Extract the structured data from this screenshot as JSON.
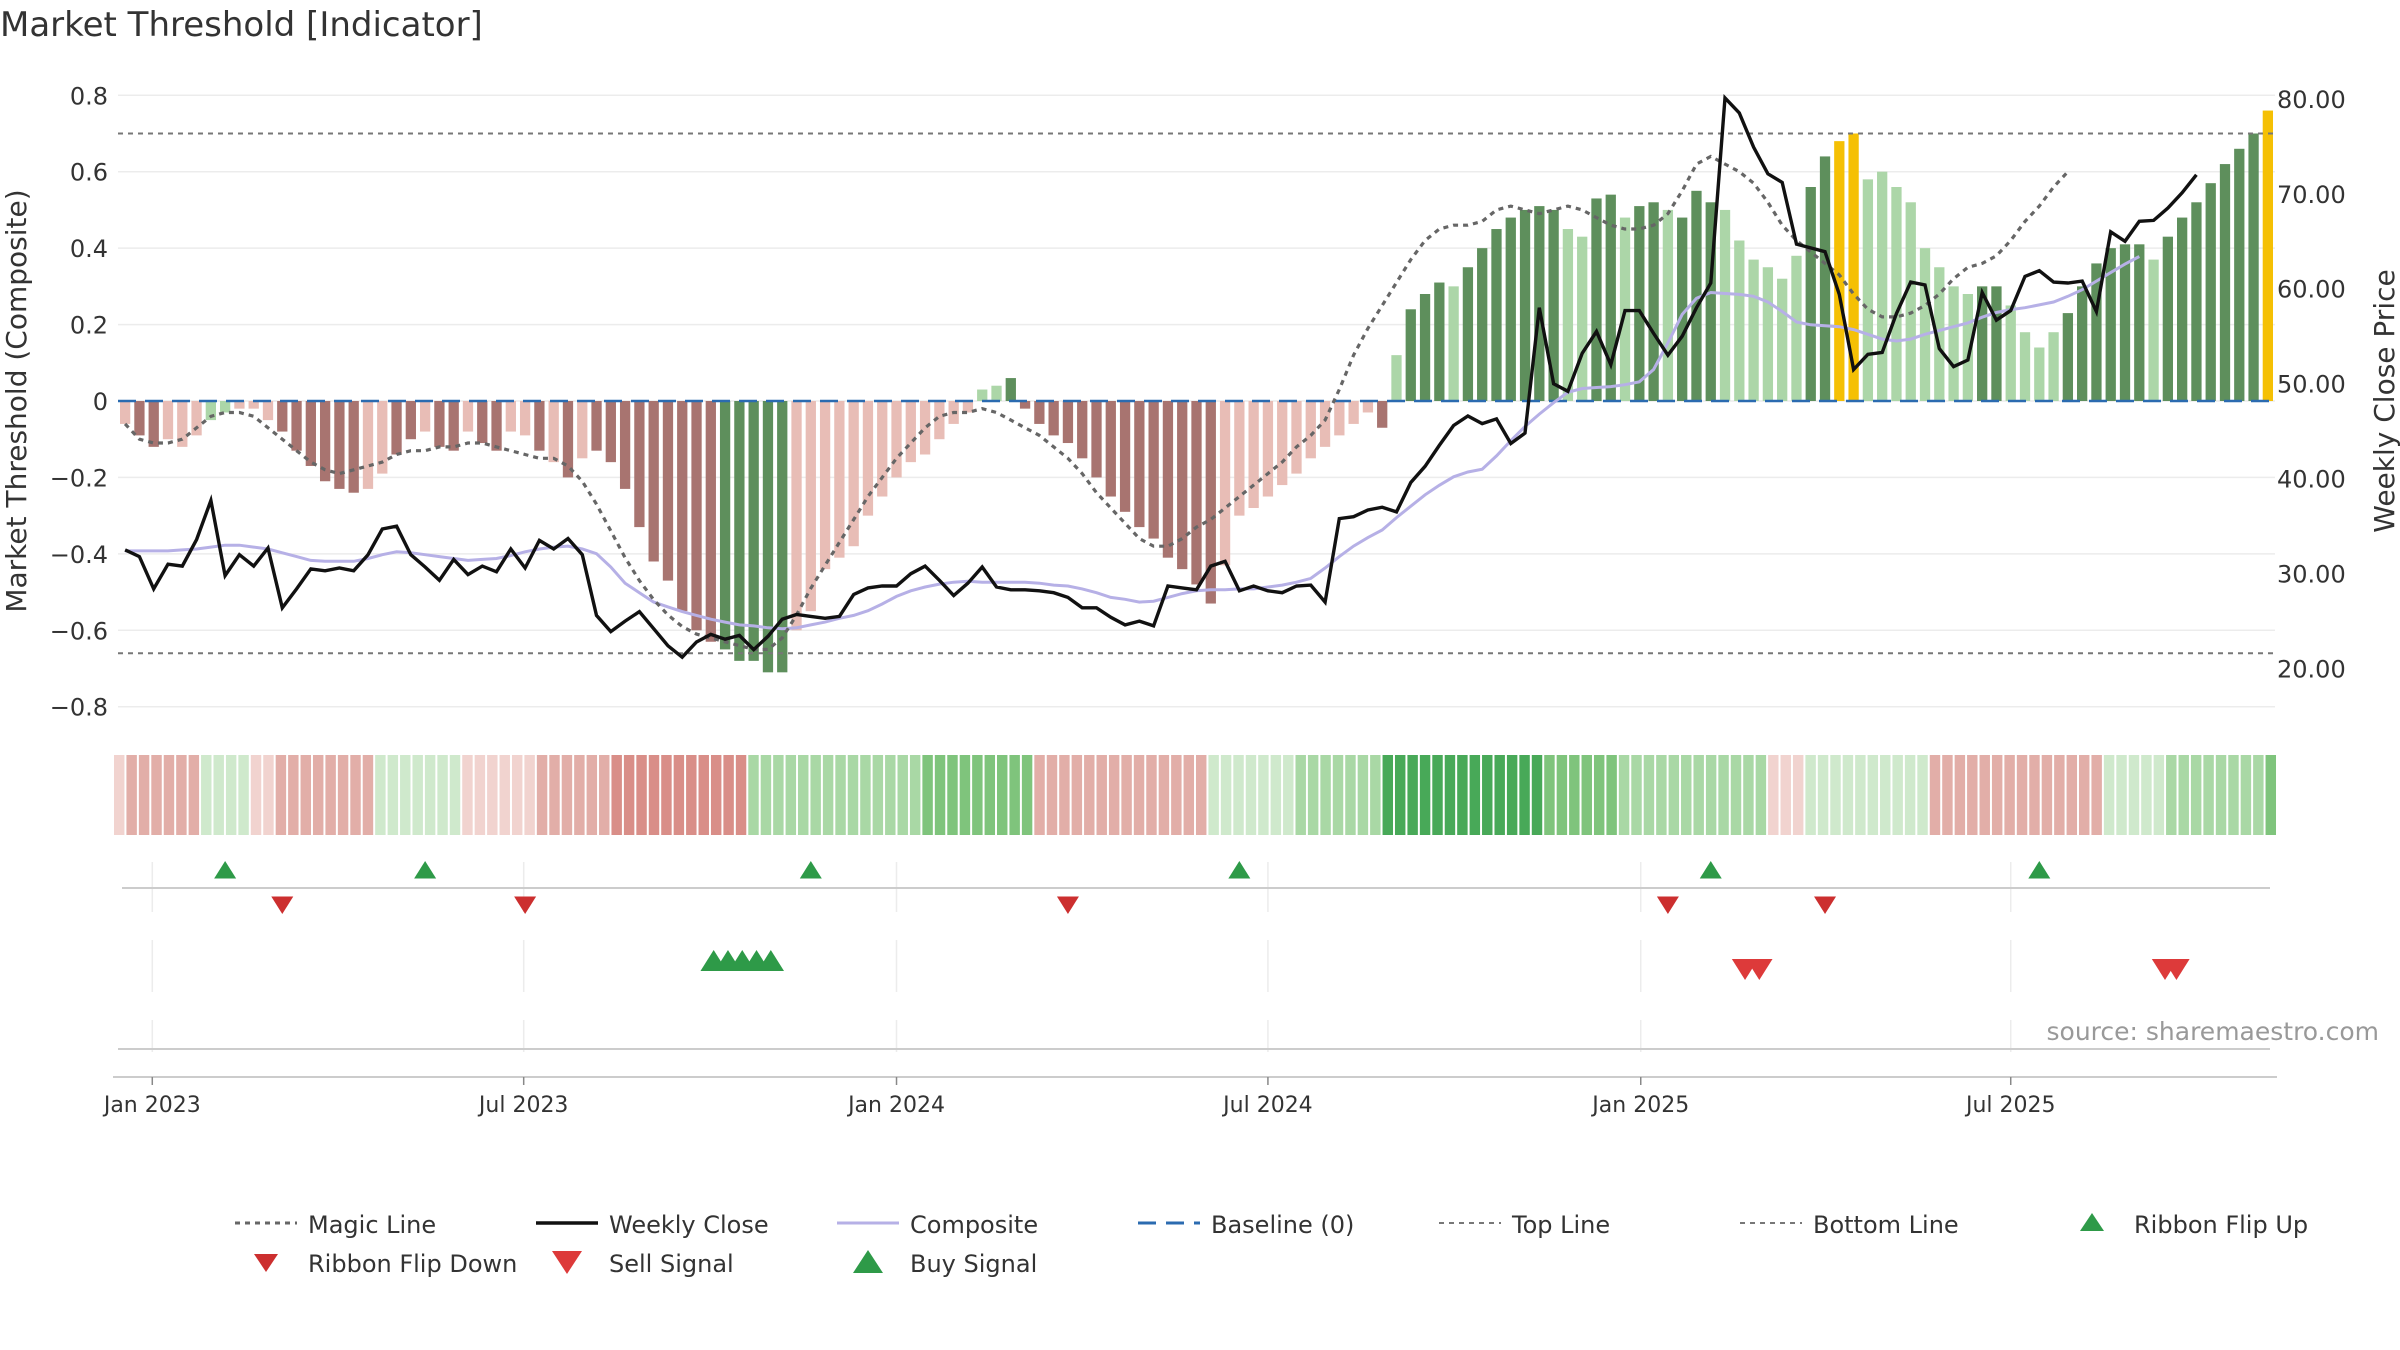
{
  "title": "Market Threshold [Indicator]",
  "source": "source: sharemaestro.com",
  "colors": {
    "green_dark": "#5e8f5c",
    "green_light": "#acd6a8",
    "red_dark": "#a87470",
    "red_light": "#e8bdb6",
    "gold": "#f5c004",
    "magic": "#666666",
    "close": "#111111",
    "composite": "#b6b0e6",
    "baseline": "#2b6bb0",
    "ref": "#777777",
    "flip_up": "#2e9a48",
    "flip_down": "#cc2f2f",
    "sell": "#dd3a3a",
    "buy": "#2e9a48"
  },
  "chart_data": {
    "type": "bar",
    "title": "Market Threshold [Indicator]",
    "ylabel": "Market Threshold (Composite)",
    "y2label": "Weekly Close Price",
    "ylim": [
      -0.84,
      0.84
    ],
    "y2lim": [
      14.38,
      81.98
    ],
    "yticks": [
      "0.8",
      "0.6",
      "0.4",
      "0.2",
      "0",
      "−0.2",
      "−0.4",
      "−0.6",
      "−0.8"
    ],
    "ytick_values": [
      0.8,
      0.6,
      0.4,
      0.2,
      0,
      -0.2,
      -0.4,
      -0.6,
      -0.8
    ],
    "y2ticks": [
      "80.00",
      "70.00",
      "60.00",
      "50.00",
      "40.00",
      "30.00",
      "20.00"
    ],
    "y2tick_values": [
      80,
      70,
      60,
      50,
      40,
      30,
      20
    ],
    "xtick_labels": [
      "Jan 2023",
      "Jul 2023",
      "Jan 2024",
      "Jul 2024",
      "Jan 2025",
      "Jul 2025"
    ],
    "xtick_weeks": [
      1.9,
      27.9,
      54.0,
      80.0,
      106.1,
      132.0
    ],
    "grid": true,
    "top_line": 0.7,
    "bottom_line": -0.66,
    "baseline": 0,
    "composite": [
      -0.06,
      -0.09,
      -0.12,
      -0.1,
      -0.12,
      -0.09,
      -0.05,
      -0.03,
      -0.02,
      -0.02,
      -0.05,
      -0.08,
      -0.13,
      -0.17,
      -0.21,
      -0.23,
      -0.24,
      -0.23,
      -0.19,
      -0.14,
      -0.1,
      -0.08,
      -0.12,
      -0.13,
      -0.08,
      -0.11,
      -0.13,
      -0.08,
      -0.09,
      -0.13,
      -0.16,
      -0.2,
      -0.15,
      -0.13,
      -0.16,
      -0.23,
      -0.33,
      -0.42,
      -0.47,
      -0.55,
      -0.6,
      -0.63,
      -0.65,
      -0.68,
      -0.68,
      -0.71,
      -0.71,
      -0.6,
      -0.55,
      -0.44,
      -0.41,
      -0.38,
      -0.3,
      -0.25,
      -0.2,
      -0.16,
      -0.14,
      -0.1,
      -0.06,
      -0.03,
      0.03,
      0.04,
      0.06,
      -0.02,
      -0.06,
      -0.09,
      -0.11,
      -0.15,
      -0.2,
      -0.25,
      -0.29,
      -0.33,
      -0.36,
      -0.41,
      -0.44,
      -0.48,
      -0.53,
      -0.43,
      -0.3,
      -0.28,
      -0.25,
      -0.22,
      -0.19,
      -0.15,
      -0.12,
      -0.09,
      -0.06,
      -0.03,
      -0.07,
      0.12,
      0.24,
      0.28,
      0.31,
      0.3,
      0.35,
      0.4,
      0.45,
      0.48,
      0.5,
      0.51,
      0.5,
      0.45,
      0.43,
      0.53,
      0.54,
      0.48,
      0.51,
      0.52,
      0.5,
      0.48,
      0.55,
      0.52,
      0.5,
      0.42,
      0.37,
      0.35,
      0.32,
      0.38,
      0.56,
      0.64,
      0.68,
      0.7,
      0.58,
      0.6,
      0.56,
      0.52,
      0.4,
      0.35,
      0.3,
      0.28,
      0.3,
      0.3,
      0.25,
      0.18,
      0.14,
      0.18,
      0.23,
      0.3,
      0.36,
      0.4,
      0.41,
      0.41,
      0.37,
      0.43,
      0.48,
      0.52,
      0.57,
      0.62,
      0.66,
      0.7,
      0.76
    ],
    "bar_color_class": [
      "rl",
      "rd",
      "rd",
      "rl",
      "rl",
      "rl",
      "gl",
      "gl",
      "rl",
      "rl",
      "rl",
      "rd",
      "rd",
      "rd",
      "rd",
      "rd",
      "rd",
      "rl",
      "rl",
      "rd",
      "rd",
      "rl",
      "rd",
      "rd",
      "rl",
      "rd",
      "rd",
      "rl",
      "rl",
      "rd",
      "rl",
      "rd",
      "rl",
      "rd",
      "rd",
      "rd",
      "rd",
      "rd",
      "rd",
      "rd",
      "rd",
      "rd",
      "gd",
      "gd",
      "gd",
      "gd",
      "gd",
      "rl",
      "rl",
      "rl",
      "rl",
      "rl",
      "rl",
      "rl",
      "rl",
      "rl",
      "rl",
      "rl",
      "rl",
      "rl",
      "gl",
      "gl",
      "gd",
      "rd",
      "rd",
      "rd",
      "rd",
      "rd",
      "rd",
      "rd",
      "rd",
      "rd",
      "rd",
      "rd",
      "rd",
      "rd",
      "rd",
      "rl",
      "rl",
      "rl",
      "rl",
      "rl",
      "rl",
      "rl",
      "rl",
      "rl",
      "rl",
      "rl",
      "rd",
      "gl",
      "gd",
      "gd",
      "gd",
      "gl",
      "gd",
      "gd",
      "gd",
      "gd",
      "gd",
      "gd",
      "gd",
      "gl",
      "gl",
      "gd",
      "gd",
      "gl",
      "gd",
      "gd",
      "gl",
      "gd",
      "gd",
      "gd",
      "gl",
      "gl",
      "gl",
      "gl",
      "gl",
      "gl",
      "gd",
      "gd",
      "gold",
      "gold",
      "gl",
      "gl",
      "gl",
      "gl",
      "gl",
      "gl",
      "gl",
      "gl",
      "gd",
      "gd",
      "gl",
      "gl",
      "gl",
      "gl",
      "gd",
      "gd",
      "gd",
      "gd",
      "gd",
      "gd",
      "gl",
      "gd",
      "gd",
      "gd",
      "gd",
      "gd",
      "gd",
      "gd",
      "gold"
    ],
    "gold_weeks": [
      41,
      42,
      43,
      44,
      45,
      46,
      113,
      114,
      148
    ],
    "weekly_close": [
      32.5,
      31.8,
      28.4,
      31.0,
      30.8,
      33.6,
      37.7,
      29.8,
      32.0,
      30.8,
      32.7,
      26.4,
      28.4,
      30.5,
      30.3,
      30.6,
      30.3,
      32.0,
      34.7,
      35.0,
      32.0,
      30.7,
      29.3,
      31.5,
      29.9,
      30.8,
      30.2,
      32.6,
      30.6,
      33.5,
      32.6,
      33.7,
      32.0,
      25.6,
      23.9,
      25.0,
      26.0,
      24.2,
      22.4,
      21.2,
      22.8,
      23.6,
      23.1,
      23.5,
      22.0,
      23.4,
      25.2,
      25.7,
      25.5,
      25.3,
      25.5,
      27.8,
      28.5,
      28.7,
      28.7,
      30.0,
      30.8,
      29.3,
      27.7,
      29.0,
      30.7,
      28.6,
      28.3,
      28.3,
      28.2,
      28.0,
      27.5,
      26.4,
      26.4,
      25.4,
      24.6,
      25.0,
      24.5,
      28.7,
      28.5,
      28.3,
      30.8,
      31.3,
      28.2,
      28.7,
      28.2,
      28.0,
      28.7,
      28.8,
      27.0,
      35.8,
      36.0,
      36.7,
      37.0,
      36.5,
      39.6,
      41.3,
      43.5,
      45.6,
      46.6,
      45.8,
      46.3,
      43.7,
      44.8,
      58.0,
      50.0,
      49.2,
      53.2,
      55.5,
      52.0,
      57.7,
      57.7,
      55.3,
      53.0,
      55.0,
      58.0,
      60.6,
      80.1,
      78.5,
      74.9,
      72.1,
      71.2,
      64.7,
      64.3,
      63.9,
      59.4,
      51.5,
      53.1,
      53.3,
      57.4,
      60.7,
      60.4,
      53.7,
      51.8,
      52.5,
      59.6,
      56.7,
      57.7,
      61.3,
      61.9,
      60.7,
      60.6,
      60.8,
      57.6,
      66.0,
      65.0,
      67.1,
      67.2,
      68.5,
      70.1,
      72.0
    ],
    "composite_line": [
      32.4,
      32.4,
      32.4,
      32.4,
      32.5,
      32.6,
      32.8,
      33.0,
      33.0,
      32.8,
      32.6,
      32.2,
      31.8,
      31.4,
      31.3,
      31.3,
      31.3,
      31.6,
      32.0,
      32.3,
      32.2,
      32.0,
      31.8,
      31.6,
      31.4,
      31.5,
      31.6,
      31.9,
      32.3,
      32.6,
      32.8,
      32.9,
      32.6,
      32.1,
      30.7,
      29.0,
      28.0,
      27.0,
      26.5,
      26.0,
      25.6,
      25.2,
      24.9,
      24.6,
      24.5,
      24.3,
      24.2,
      24.3,
      24.6,
      24.9,
      25.3,
      25.6,
      26.1,
      26.8,
      27.6,
      28.2,
      28.6,
      28.9,
      29.1,
      29.2,
      29.1,
      29.1,
      29.1,
      29.1,
      29.0,
      28.8,
      28.7,
      28.4,
      28.0,
      27.5,
      27.3,
      27.0,
      27.1,
      27.5,
      27.9,
      28.2,
      28.3,
      28.3,
      28.4,
      28.4,
      28.6,
      28.8,
      29.1,
      29.5,
      30.6,
      31.8,
      32.9,
      33.8,
      34.6,
      35.9,
      37.1,
      38.3,
      39.3,
      40.2,
      40.7,
      41.0,
      42.4,
      44.0,
      45.5,
      46.8,
      48.0,
      49.1,
      49.5,
      49.6,
      49.7,
      49.9,
      50.2,
      51.5,
      54.3,
      57.3,
      59.0,
      59.6,
      59.5,
      59.4,
      59.2,
      58.6,
      57.6,
      56.5,
      56.2,
      56.1,
      56.0,
      55.7,
      55.2,
      54.7,
      54.5,
      54.7,
      55.2,
      55.6,
      56.0,
      56.4,
      57.0,
      57.5,
      57.8,
      58.0,
      58.3,
      58.6,
      59.2,
      59.9,
      60.8,
      61.7,
      62.6,
      63.4
    ],
    "magic_line": [
      -0.06,
      -0.1,
      -0.11,
      -0.11,
      -0.1,
      -0.07,
      -0.04,
      -0.03,
      -0.03,
      -0.04,
      -0.07,
      -0.1,
      -0.13,
      -0.16,
      -0.18,
      -0.19,
      -0.18,
      -0.17,
      -0.16,
      -0.14,
      -0.13,
      -0.13,
      -0.12,
      -0.12,
      -0.11,
      -0.11,
      -0.12,
      -0.13,
      -0.14,
      -0.15,
      -0.15,
      -0.17,
      -0.21,
      -0.27,
      -0.34,
      -0.41,
      -0.47,
      -0.52,
      -0.56,
      -0.59,
      -0.61,
      -0.62,
      -0.63,
      -0.64,
      -0.65,
      -0.65,
      -0.62,
      -0.56,
      -0.49,
      -0.43,
      -0.37,
      -0.31,
      -0.25,
      -0.2,
      -0.15,
      -0.11,
      -0.07,
      -0.04,
      -0.03,
      -0.03,
      -0.02,
      -0.03,
      -0.05,
      -0.07,
      -0.09,
      -0.12,
      -0.15,
      -0.19,
      -0.24,
      -0.28,
      -0.32,
      -0.36,
      -0.38,
      -0.38,
      -0.36,
      -0.33,
      -0.31,
      -0.28,
      -0.25,
      -0.22,
      -0.19,
      -0.16,
      -0.12,
      -0.09,
      -0.05,
      0.03,
      0.12,
      0.19,
      0.25,
      0.31,
      0.37,
      0.42,
      0.45,
      0.46,
      0.46,
      0.47,
      0.5,
      0.51,
      0.5,
      0.49,
      0.5,
      0.51,
      0.5,
      0.48,
      0.46,
      0.45,
      0.45,
      0.46,
      0.49,
      0.55,
      0.62,
      0.64,
      0.62,
      0.6,
      0.57,
      0.52,
      0.46,
      0.42,
      0.39,
      0.36,
      0.33,
      0.28,
      0.24,
      0.22,
      0.22,
      0.23,
      0.25,
      0.28,
      0.32,
      0.35,
      0.36,
      0.38,
      0.42,
      0.47,
      0.51,
      0.56,
      0.6
    ],
    "ribbon_levels": [
      -1,
      -2,
      -2,
      -2,
      -2,
      -2,
      -2,
      1,
      1,
      1,
      1,
      -1,
      -1,
      -2,
      -2,
      -2,
      -2,
      -2,
      -2,
      -2,
      -2,
      1,
      1,
      1,
      1,
      1,
      1,
      1,
      -1,
      -1,
      -1,
      -1,
      -1,
      -1,
      -2,
      -2,
      -2,
      -2,
      -2,
      -2,
      -3,
      -3,
      -3,
      -3,
      -3,
      -3,
      -3,
      -3,
      -3,
      -3,
      -3,
      2,
      2,
      2,
      2,
      2,
      2,
      2,
      2,
      2,
      2,
      2,
      2,
      2,
      2,
      3,
      3,
      3,
      3,
      3,
      3,
      3,
      3,
      3,
      -2,
      -2,
      -2,
      -2,
      -2,
      -2,
      -2,
      -2,
      -2,
      -2,
      -2,
      -2,
      -2,
      -2,
      1,
      1,
      1,
      1,
      1,
      1,
      1,
      2,
      2,
      2,
      2,
      2,
      2,
      2,
      4,
      4,
      4,
      4,
      4,
      4,
      4,
      4,
      4,
      4,
      4,
      4,
      4,
      3,
      3,
      3,
      3,
      3,
      3,
      2,
      2,
      2,
      2,
      2,
      2,
      2,
      2,
      2,
      2,
      2,
      2,
      -1,
      -1,
      -1,
      1,
      1,
      1,
      1,
      1,
      1,
      1,
      1,
      1,
      1,
      -2,
      -2,
      -2,
      -2,
      -2,
      -2,
      -2,
      -2,
      -2,
      -2,
      -2,
      -2,
      -2,
      -2,
      1,
      1,
      1,
      1,
      1,
      2,
      2,
      2,
      2,
      2,
      2,
      2,
      2,
      3
    ],
    "ribbon_flip_up_weeks": [
      7.0,
      21.0,
      48.0,
      78.0,
      111.0,
      134.0
    ],
    "ribbon_flip_down_weeks": [
      11.0,
      28.0,
      66.0,
      108.0,
      119.0
    ],
    "buy_signal_weeks": [
      41.2,
      42.2,
      43.2,
      44.2,
      45.2
    ],
    "sell_signal_weeks": [
      113.4,
      114.4,
      142.8,
      143.6
    ],
    "legend": [
      "Magic Line",
      "Weekly Close",
      "Composite",
      "Baseline (0)",
      "Top Line",
      "Bottom Line",
      "Ribbon Flip Up",
      "Ribbon Flip Down",
      "Sell Signal",
      "Buy Signal"
    ]
  }
}
